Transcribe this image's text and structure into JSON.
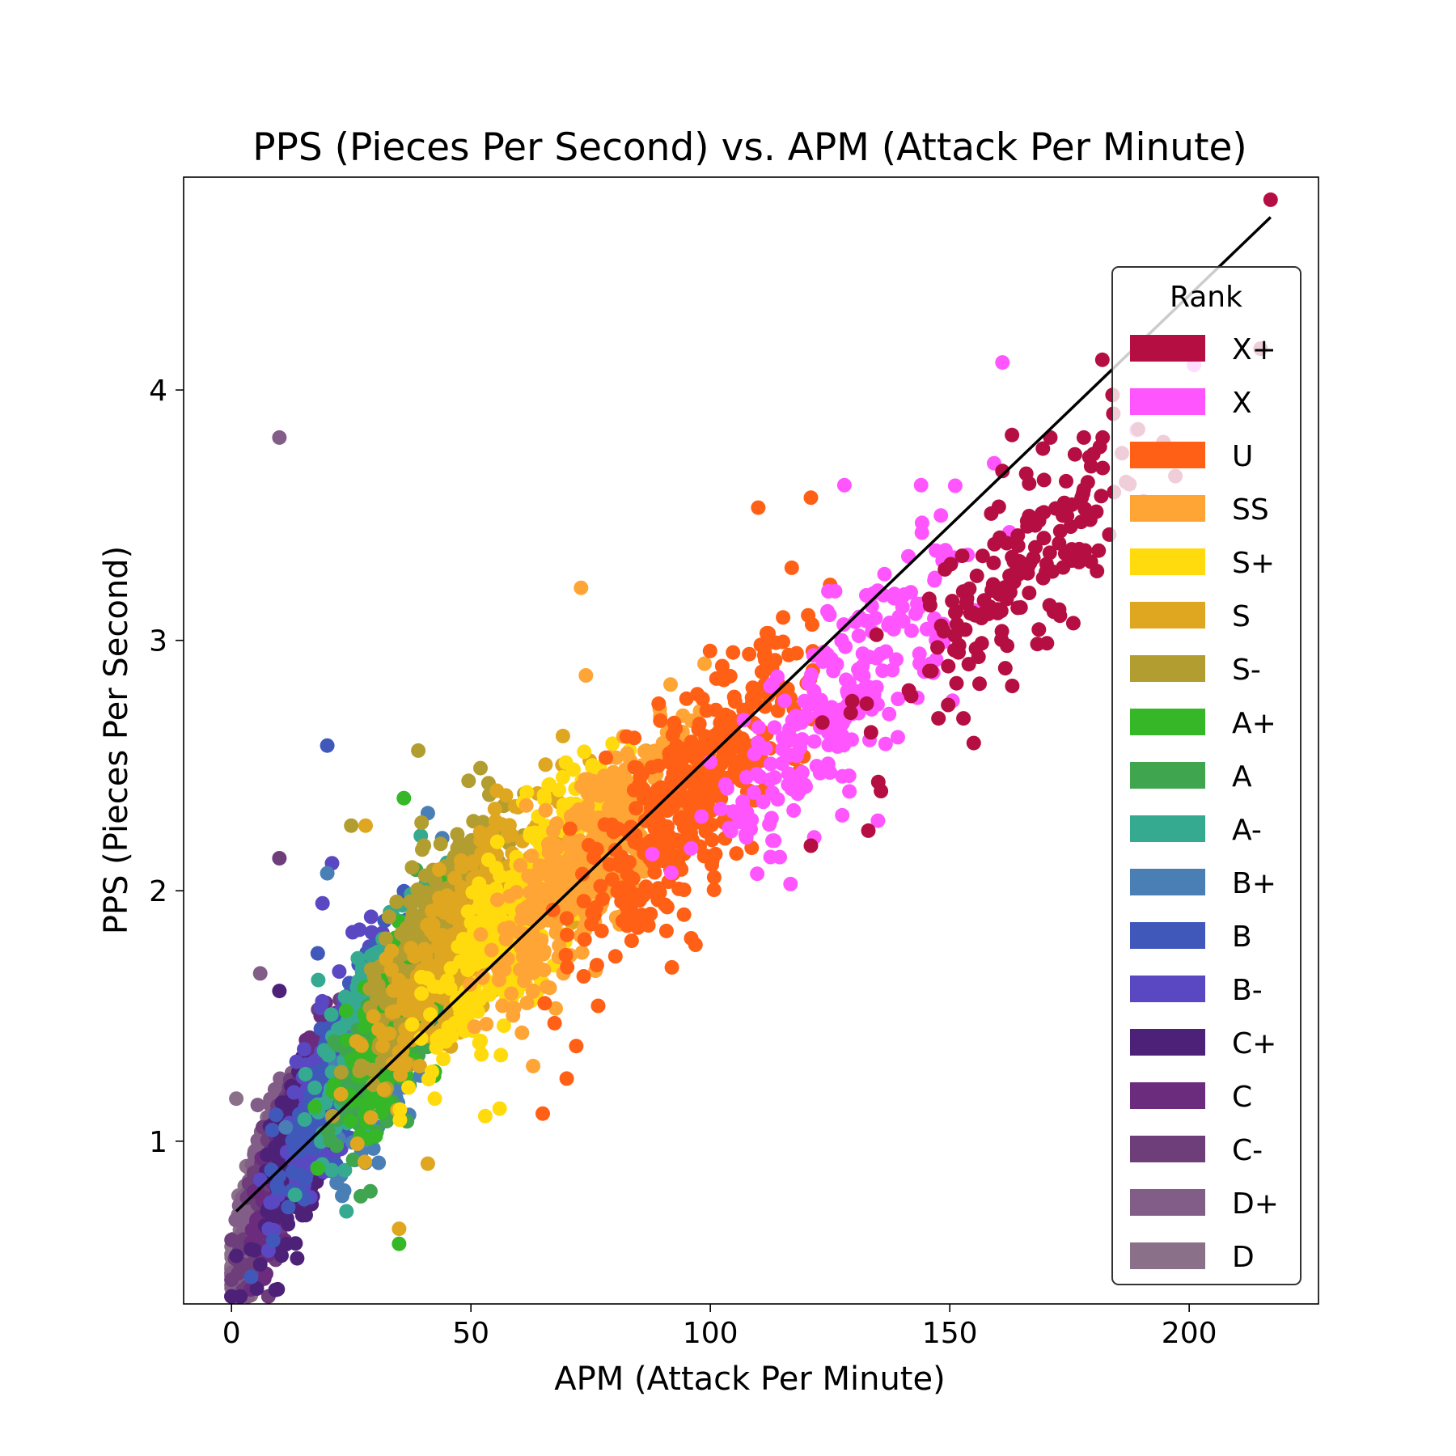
{
  "chart_data": {
    "type": "scatter",
    "title": "PPS (Pieces Per Second) vs. APM (Attack Per Minute)",
    "xlabel": "APM (Attack Per Minute)",
    "ylabel": "PPS (Pieces Per Second)",
    "xlim": [
      -10,
      227
    ],
    "ylim": [
      0.35,
      4.85
    ],
    "xticks": [
      0,
      50,
      100,
      150,
      200
    ],
    "yticks": [
      1,
      2,
      3,
      4
    ],
    "grid": false,
    "legend": {
      "title": "Rank",
      "placement": "right"
    },
    "trendline": {
      "x": [
        1,
        217
      ],
      "y": [
        0.72,
        4.69
      ],
      "color": "#000000"
    },
    "series": [
      {
        "name": "X+",
        "color": "#b50e42",
        "center": [
          165,
          3.25
        ],
        "spread": [
          14,
          0.32
        ],
        "count": 170,
        "outliers": [
          [
            217,
            4.76
          ],
          [
            184,
            3.98
          ],
          [
            178,
            3.81
          ],
          [
            171,
            3.81
          ],
          [
            163,
            3.82
          ],
          [
            155,
            2.59
          ],
          [
            133,
            2.24
          ],
          [
            121,
            2.18
          ]
        ]
      },
      {
        "name": "X",
        "color": "#ff55ff",
        "center": [
          127,
          2.75
        ],
        "spread": [
          13,
          0.34
        ],
        "count": 230,
        "outliers": [
          [
            161,
            4.11
          ],
          [
            144,
            3.62
          ],
          [
            128,
            3.62
          ],
          [
            135,
            2.28
          ],
          [
            113,
            2.2
          ],
          [
            189,
            3.84
          ],
          [
            201,
            4.1
          ]
        ]
      },
      {
        "name": "U",
        "color": "#ff6015",
        "center": [
          96,
          2.38
        ],
        "spread": [
          12,
          0.33
        ],
        "count": 420,
        "outliers": [
          [
            110,
            3.53
          ],
          [
            121,
            3.57
          ],
          [
            65,
            1.11
          ],
          [
            70,
            1.25
          ],
          [
            72,
            1.38
          ],
          [
            96,
            1.81
          ],
          [
            117,
            3.29
          ]
        ]
      },
      {
        "name": "SS",
        "color": "#ffa535",
        "center": [
          74,
          2.12
        ],
        "spread": [
          10,
          0.3
        ],
        "count": 380,
        "outliers": [
          [
            73,
            3.21
          ],
          [
            74,
            2.86
          ],
          [
            63,
            1.3
          ]
        ]
      },
      {
        "name": "S+",
        "color": "#ffdb0e",
        "center": [
          60,
          1.9
        ],
        "spread": [
          9,
          0.3
        ],
        "count": 360,
        "outliers": [
          [
            56,
            1.13
          ],
          [
            53,
            1.1
          ]
        ]
      },
      {
        "name": "S",
        "color": "#dfa620",
        "center": [
          48,
          1.8
        ],
        "spread": [
          9,
          0.28
        ],
        "count": 320,
        "outliers": [
          [
            35,
            0.65
          ],
          [
            28,
            2.26
          ],
          [
            41,
            0.91
          ]
        ]
      },
      {
        "name": "S-",
        "color": "#b29e30",
        "center": [
          43,
          1.85
        ],
        "spread": [
          8,
          0.28
        ],
        "count": 240,
        "outliers": [
          [
            39,
            2.56
          ],
          [
            52,
            2.49
          ],
          [
            25,
            2.26
          ]
        ]
      },
      {
        "name": "A+",
        "color": "#35b728",
        "center": [
          38,
          1.6
        ],
        "spread": [
          7,
          0.27
        ],
        "count": 300,
        "outliers": [
          [
            35,
            0.59
          ],
          [
            36,
            2.37
          ],
          [
            52,
            2.07
          ]
        ]
      },
      {
        "name": "A",
        "color": "#3fa54f",
        "center": [
          36,
          1.5
        ],
        "spread": [
          7,
          0.26
        ],
        "count": 260,
        "outliers": [
          [
            27,
            0.78
          ],
          [
            29,
            0.8
          ]
        ]
      },
      {
        "name": "A-",
        "color": "#36aa90",
        "center": [
          30,
          1.52
        ],
        "spread": [
          6,
          0.26
        ],
        "count": 260,
        "outliers": [
          [
            73,
            2.12
          ],
          [
            24,
            0.72
          ]
        ]
      },
      {
        "name": "B+",
        "color": "#4a7fb5",
        "center": [
          35,
          1.4
        ],
        "spread": [
          7,
          0.25
        ],
        "count": 220,
        "outliers": [
          [
            41,
            2.31
          ],
          [
            44,
            2.21
          ],
          [
            20,
            2.07
          ]
        ]
      },
      {
        "name": "B",
        "color": "#4158bb",
        "center": [
          24,
          1.32
        ],
        "spread": [
          6,
          0.26
        ],
        "count": 260,
        "outliers": [
          [
            20,
            2.58
          ],
          [
            18,
            1.75
          ]
        ]
      },
      {
        "name": "B-",
        "color": "#5a48c2",
        "center": [
          21,
          1.25
        ],
        "spread": [
          5,
          0.26
        ],
        "count": 260,
        "outliers": [
          [
            21,
            2.11
          ],
          [
            19,
            1.95
          ]
        ]
      },
      {
        "name": "C+",
        "color": "#4e2179",
        "center": [
          16,
          1.05
        ],
        "spread": [
          5,
          0.25
        ],
        "count": 240,
        "outliers": [
          [
            10,
            1.6
          ]
        ]
      },
      {
        "name": "C",
        "color": "#6b2c7d",
        "center": [
          13,
          0.98
        ],
        "spread": [
          4,
          0.24
        ],
        "count": 240,
        "outliers": []
      },
      {
        "name": "C-",
        "color": "#6e3e7a",
        "center": [
          10,
          0.92
        ],
        "spread": [
          4,
          0.23
        ],
        "count": 220,
        "outliers": [
          [
            10,
            2.13
          ]
        ]
      },
      {
        "name": "D+",
        "color": "#825d87",
        "center": [
          7,
          0.82
        ],
        "spread": [
          3.5,
          0.22
        ],
        "count": 240,
        "outliers": [
          [
            10,
            3.81
          ],
          [
            6,
            1.67
          ]
        ]
      },
      {
        "name": "D",
        "color": "#8a7088",
        "center": [
          5,
          0.72
        ],
        "spread": [
          3,
          0.2
        ],
        "count": 260,
        "outliers": [
          [
            1,
            1.17
          ]
        ]
      }
    ]
  }
}
